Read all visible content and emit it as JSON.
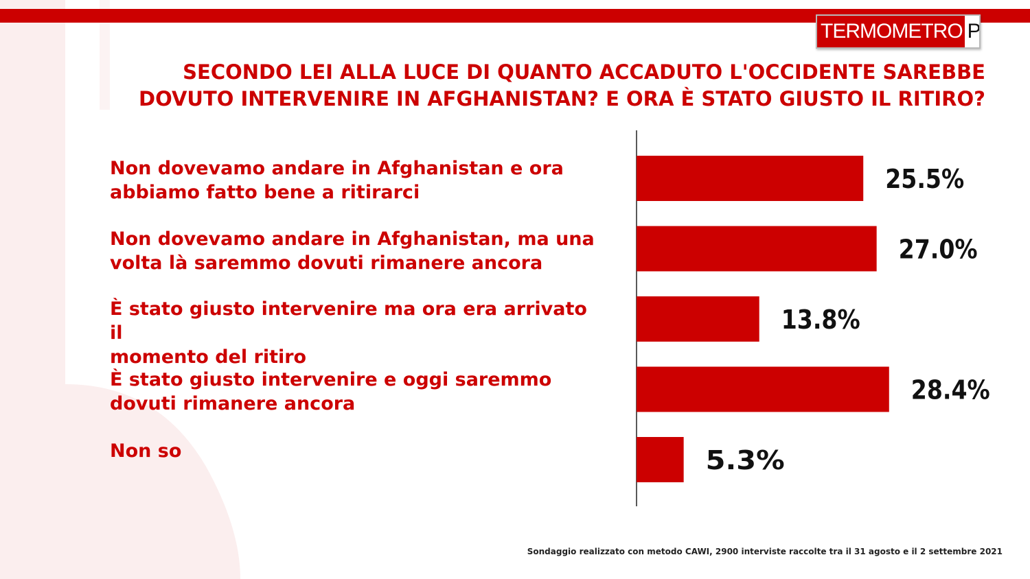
{
  "brand": {
    "logo_left": "TERMOMETRO",
    "logo_right": "POLITICO",
    "accent_color": "#cc0000"
  },
  "title": {
    "line1": "SECONDO LEI ALLA LUCE DI QUANTO ACCADUTO L'OCCIDENTE SAREBBE",
    "line2": "DOVUTO INTERVENIRE IN AFGHANISTAN? E ORA È STATO GIUSTO IL RITIRO?"
  },
  "chart_data": {
    "type": "bar",
    "orientation": "horizontal",
    "categories": [
      [
        "Non dovevamo andare in Afghanistan e ora",
        "abbiamo fatto bene a ritirarci"
      ],
      [
        "Non dovevamo andare in Afghanistan, ma una",
        "volta là saremmo dovuti rimanere ancora"
      ],
      [
        "È stato giusto intervenire ma ora era arrivato il",
        "momento del ritiro"
      ],
      [
        "È stato giusto intervenire e oggi saremmo",
        "dovuti rimanere ancora"
      ],
      [
        "Non so"
      ]
    ],
    "values": [
      25.5,
      27.0,
      13.8,
      28.4,
      5.3
    ],
    "value_labels": [
      "25.5%",
      "27.0%",
      "13.8%",
      "28.4%",
      "5.3%"
    ],
    "bar_color": "#cc0000",
    "xlim": [
      0,
      40
    ],
    "grid": false,
    "legend": "none"
  },
  "footnote": "Sondaggio realizzato con metodo CAWI, 2900 interviste raccolte tra il 31 agosto  e il 2  settembre 2021"
}
